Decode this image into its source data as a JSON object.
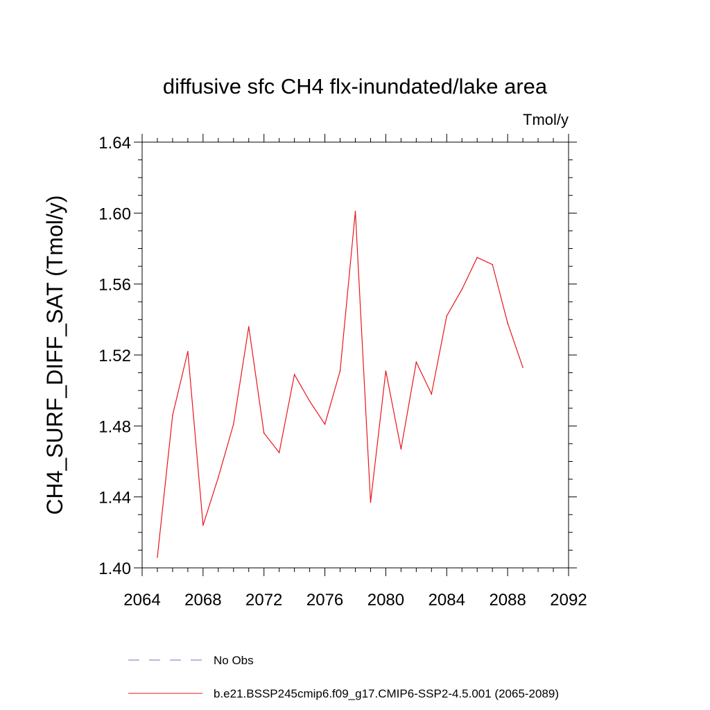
{
  "chart_data": {
    "type": "line",
    "title": "diffusive sfc CH4 flx-inundated/lake area",
    "units_label": "Tmol/y",
    "xlabel": "",
    "ylabel": "CH4_SURF_DIFF_SAT  (Tmol/y)",
    "xlim": [
      2064,
      2092
    ],
    "ylim": [
      1.4,
      1.64
    ],
    "x_ticks": [
      "2064",
      "2068",
      "2072",
      "2076",
      "2080",
      "2084",
      "2088",
      "2092"
    ],
    "y_ticks": [
      "1.40",
      "1.44",
      "1.48",
      "1.52",
      "1.56",
      "1.60",
      "1.64"
    ],
    "grid": false,
    "legend_position": "bottom",
    "series": [
      {
        "name": "b.e21.BSSP245cmip6.f09_g17.CMIP6-SSP2-4.5.001 (2065-2089)",
        "color": "#e8141b",
        "style": "solid",
        "x": [
          2065,
          2066,
          2067,
          2068,
          2069,
          2070,
          2071,
          2072,
          2073,
          2074,
          2075,
          2076,
          2077,
          2078,
          2079,
          2080,
          2081,
          2082,
          2083,
          2084,
          2085,
          2086,
          2087,
          2088,
          2089
        ],
        "y": [
          1.406,
          1.486,
          1.522,
          1.424,
          1.451,
          1.481,
          1.536,
          1.476,
          1.465,
          1.509,
          1.494,
          1.481,
          1.511,
          1.601,
          1.437,
          1.511,
          1.467,
          1.516,
          1.498,
          1.542,
          1.557,
          1.575,
          1.571,
          1.538,
          1.513
        ]
      }
    ],
    "legend": [
      {
        "label": "No Obs",
        "color": "#7b6fc0",
        "style": "dashed"
      },
      {
        "label": "b.e21.BSSP245cmip6.f09_g17.CMIP6-SSP2-4.5.001 (2065-2089)",
        "color": "#e8141b",
        "style": "solid"
      }
    ]
  }
}
